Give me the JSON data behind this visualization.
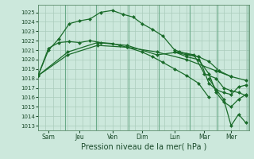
{
  "background_color": "#cce8dc",
  "grid_color": "#aaccbb",
  "line_color": "#1a6b2a",
  "marker_color": "#1a6b2a",
  "xlim": [
    0,
    14.2
  ],
  "ylim": [
    1012.5,
    1025.8
  ],
  "yticks": [
    1013,
    1014,
    1015,
    1016,
    1017,
    1018,
    1019,
    1020,
    1021,
    1022,
    1023,
    1024,
    1025
  ],
  "xlabel": "Pression niveau de la mer( hPa )",
  "xlabel_fontsize": 7,
  "xtick_positions": [
    0.7,
    2.8,
    5.0,
    7.0,
    9.2,
    11.2,
    13.0
  ],
  "xtick_labels": [
    "Sam",
    "Jeu",
    "Ven",
    "Dim",
    "Lun",
    "Mar",
    "Mer"
  ],
  "vlines": [
    1.8,
    3.9,
    6.1,
    8.1,
    10.2,
    12.1,
    14.1
  ],
  "series": [
    {
      "x": [
        0.0,
        0.7,
        1.4,
        2.1,
        2.8,
        3.5,
        4.2,
        5.0,
        5.7,
        6.4,
        7.0,
        7.7,
        8.4,
        9.2,
        10.0,
        10.8,
        11.5,
        12.2,
        13.0
      ],
      "y": [
        1018.3,
        1021.0,
        1022.2,
        1023.8,
        1024.1,
        1024.3,
        1025.0,
        1025.2,
        1024.8,
        1024.5,
        1023.8,
        1023.2,
        1022.5,
        1021.0,
        1020.6,
        1020.3,
        1019.8,
        1018.8,
        1018.2
      ]
    },
    {
      "x": [
        0.0,
        0.7,
        1.4,
        2.1,
        2.8,
        3.5,
        4.2,
        5.0,
        5.5,
        6.0,
        7.0,
        7.7,
        8.4,
        9.2,
        10.0,
        10.8,
        11.5
      ],
      "y": [
        1018.3,
        1021.2,
        1021.8,
        1021.9,
        1021.8,
        1022.0,
        1021.8,
        1021.7,
        1021.5,
        1021.3,
        1020.8,
        1020.3,
        1019.7,
        1019.0,
        1018.3,
        1017.5,
        1016.0
      ]
    },
    {
      "x": [
        0.0,
        2.0,
        4.0,
        6.0,
        8.0,
        10.0,
        12.0,
        13.0,
        14.0
      ],
      "y": [
        1018.3,
        1020.5,
        1021.5,
        1021.3,
        1020.8,
        1020.0,
        1018.8,
        1018.2,
        1017.8
      ]
    },
    {
      "x": [
        0.0,
        2.0,
        4.0,
        6.0,
        8.0,
        9.5,
        10.5,
        11.2,
        12.0,
        12.5,
        13.0,
        13.5,
        14.0
      ],
      "y": [
        1018.3,
        1020.8,
        1021.8,
        1021.5,
        1020.5,
        1020.8,
        1020.5,
        1018.5,
        1018.0,
        1017.0,
        1016.7,
        1016.5,
        1016.2
      ]
    },
    {
      "x": [
        9.2,
        10.0,
        10.8,
        11.5,
        12.0,
        12.5,
        13.0,
        13.5,
        14.0
      ],
      "y": [
        1020.8,
        1020.5,
        1020.3,
        1017.5,
        1016.8,
        1016.5,
        1016.3,
        1017.1,
        1017.3
      ]
    },
    {
      "x": [
        9.2,
        10.0,
        10.8,
        11.5,
        12.0,
        12.5,
        13.0,
        13.5,
        14.0
      ],
      "y": [
        1020.8,
        1020.3,
        1020.0,
        1018.5,
        1016.5,
        1015.5,
        1015.0,
        1015.8,
        1016.3
      ]
    },
    {
      "x": [
        11.5,
        12.0,
        12.5,
        13.0,
        13.5,
        14.0
      ],
      "y": [
        1018.0,
        1016.8,
        1015.8,
        1013.0,
        1014.2,
        1013.3
      ]
    }
  ]
}
